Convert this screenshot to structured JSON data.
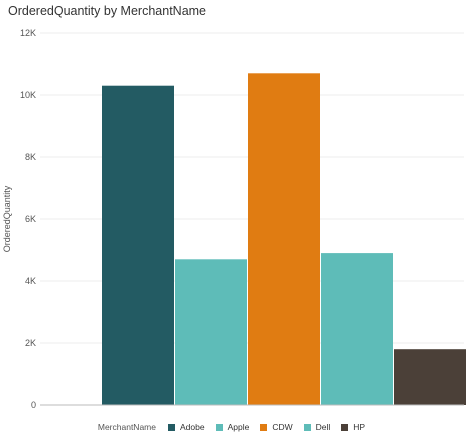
{
  "chart_data": {
    "type": "bar",
    "title": "OrderedQuantity by MerchantName",
    "xlabel": "",
    "ylabel": "OrderedQuantity",
    "ylim": [
      0,
      12000
    ],
    "y_ticks": [
      0,
      2000,
      4000,
      6000,
      8000,
      10000,
      12000
    ],
    "y_tick_labels": [
      "0",
      "2K",
      "4K",
      "6K",
      "8K",
      "10K",
      "12K"
    ],
    "grid": true,
    "legend_title": "MerchantName",
    "legend_position": "bottom",
    "categories": [
      "Adobe",
      "Apple",
      "CDW",
      "Dell",
      "HP"
    ],
    "values": [
      10300,
      4700,
      10700,
      4900,
      1800
    ],
    "colors": [
      "#235b63",
      "#5ebcb8",
      "#e07c12",
      "#5ebcb8",
      "#4b4038"
    ]
  }
}
